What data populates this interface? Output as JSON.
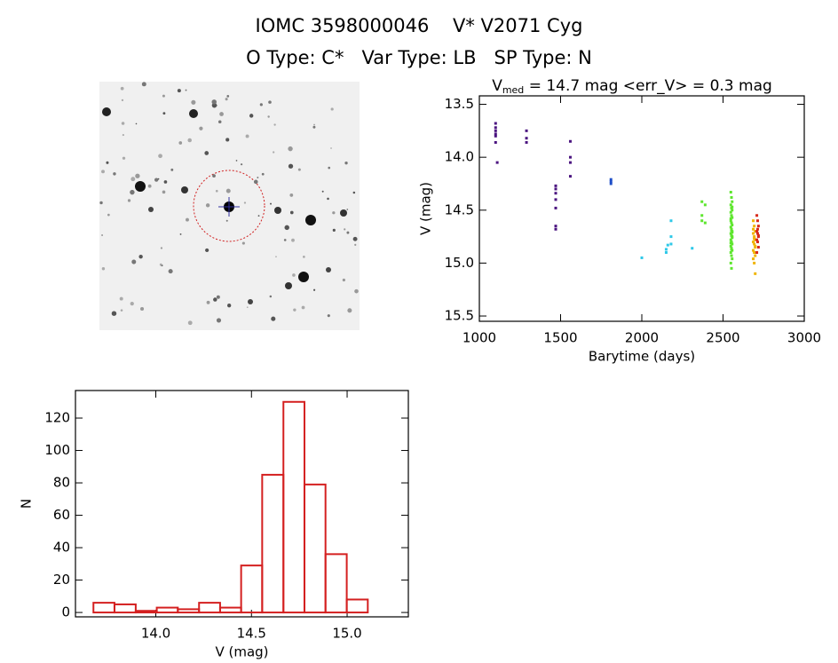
{
  "header": {
    "title": "IOMC 3598000046    V* V2071 Cyg",
    "subtitle": "O Type: C*   Var Type: LB   SP Type: N"
  },
  "chart_data": [
    {
      "type": "scatter",
      "title_parts": [
        "V",
        "med",
        " = 14.7 mag <err_V> = 0.3 mag"
      ],
      "x_label": "Barytime (days)",
      "y_label": "V (mag)",
      "xlim": [
        1000,
        3000
      ],
      "xticks": [
        1000,
        1500,
        2000,
        2500,
        3000
      ],
      "ylim": [
        15.55,
        13.42
      ],
      "yticks": [
        13.5,
        {
          "value": 14,
          "label": "14.0"
        },
        14.5,
        {
          "value": 15,
          "label": "15.0"
        },
        15.5
      ],
      "series": [
        {
          "color": "#4b1480",
          "x": [
            1100,
            1100,
            1100,
            1100,
            1100,
            1100,
            1110,
            1290,
            1290,
            1290,
            1470,
            1470,
            1470,
            1470,
            1470,
            1470,
            1470,
            1560,
            1560,
            1560,
            1560
          ],
          "values": [
            13.68,
            13.72,
            13.75,
            13.78,
            13.8,
            13.86,
            14.05,
            13.75,
            13.82,
            13.86,
            14.27,
            14.3,
            14.34,
            14.4,
            14.48,
            14.65,
            14.68,
            13.85,
            14.0,
            14.05,
            14.18
          ]
        },
        {
          "color": "#1f4fc8",
          "x": [
            1810,
            1810,
            1810
          ],
          "values": [
            14.21,
            14.23,
            14.25
          ]
        },
        {
          "color": "#2ec8e8",
          "x": [
            2000,
            2150,
            2150,
            2160,
            2180,
            2180,
            2180,
            2310
          ],
          "values": [
            14.95,
            14.9,
            14.87,
            14.83,
            14.6,
            14.75,
            14.82,
            14.86
          ]
        },
        {
          "color": "#5ee62e",
          "x": [
            2370,
            2370,
            2370,
            2390,
            2390,
            2548,
            2552,
            2556,
            2548,
            2552,
            2556,
            2548,
            2552,
            2556,
            2548,
            2552,
            2556,
            2548,
            2552,
            2556,
            2548,
            2552,
            2556,
            2548,
            2552,
            2556,
            2548,
            2552,
            2556,
            2548,
            2552,
            2556,
            2548,
            2552,
            2556,
            2548,
            2552,
            2556,
            2548,
            2552,
            2556
          ],
          "values": [
            14.42,
            14.55,
            14.6,
            14.45,
            14.62,
            14.33,
            14.38,
            14.42,
            14.45,
            14.48,
            14.5,
            14.52,
            14.55,
            14.57,
            14.6,
            14.62,
            14.64,
            14.66,
            14.68,
            14.7,
            14.72,
            14.74,
            14.76,
            14.78,
            14.8,
            14.82,
            14.84,
            14.86,
            14.88,
            14.9,
            14.93,
            14.96,
            15.0,
            15.05,
            14.47,
            14.58,
            14.69,
            14.75,
            14.81,
            14.87,
            14.71
          ]
        },
        {
          "color": "#f0b400",
          "x": [
            2686,
            2692,
            2698,
            2686,
            2692,
            2698,
            2686,
            2692,
            2698,
            2686,
            2692,
            2698,
            2686,
            2692,
            2698,
            2686,
            2692,
            2698
          ],
          "values": [
            14.6,
            14.65,
            14.7,
            14.72,
            14.75,
            14.78,
            14.8,
            14.82,
            14.85,
            14.88,
            14.9,
            14.93,
            14.96,
            15.0,
            15.1,
            14.68,
            14.77,
            14.84
          ]
        },
        {
          "color": "#d82a1a",
          "x": [
            2708,
            2713,
            2718,
            2708,
            2713,
            2718,
            2708,
            2713,
            2718,
            2708,
            2713,
            2718
          ],
          "values": [
            14.55,
            14.6,
            14.65,
            14.7,
            14.72,
            14.75,
            14.78,
            14.8,
            14.85,
            14.9,
            14.68,
            14.74
          ]
        }
      ]
    },
    {
      "type": "histogram",
      "color": "#d42020",
      "x_label": "V (mag)",
      "y_label": "N",
      "bins": [
        13.674,
        13.784,
        13.895,
        14.005,
        14.115,
        14.226,
        14.336,
        14.446,
        14.556,
        14.667,
        14.777,
        14.887,
        14.998,
        15.108
      ],
      "values": [
        6,
        5,
        1,
        3,
        2,
        6,
        3,
        29,
        85,
        130,
        79,
        36,
        8
      ],
      "xlim": [
        13.58,
        15.32
      ],
      "xticks": [
        {
          "value": 14,
          "label": "14.0"
        },
        14.5,
        {
          "value": 15,
          "label": "15.0"
        }
      ],
      "ylim": [
        -2.7,
        137
      ],
      "yticks": [
        0,
        20,
        40,
        60,
        80,
        100,
        120
      ]
    }
  ]
}
